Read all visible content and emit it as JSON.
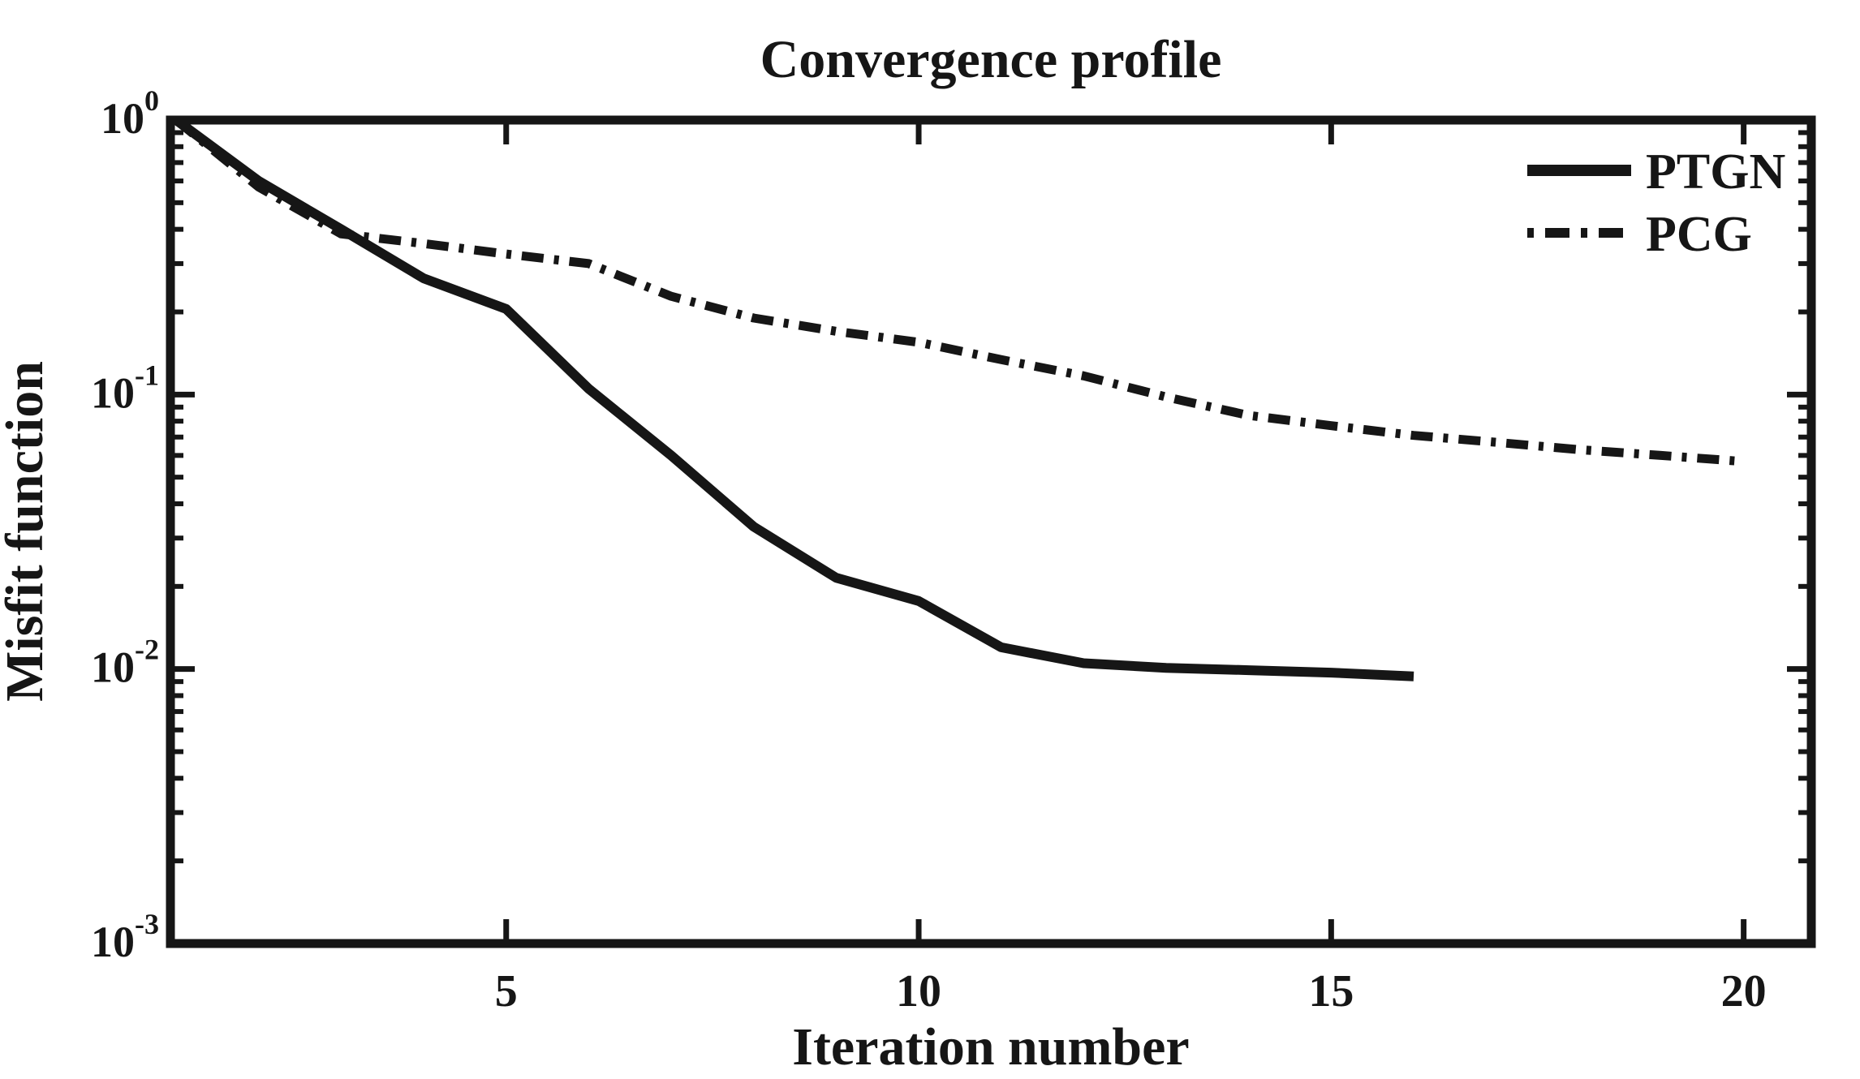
{
  "page": {
    "background": "#ffffff",
    "ink": "#161616"
  },
  "chart_data": {
    "type": "line",
    "title": "Convergence profile",
    "xlabel": "Iteration number",
    "ylabel": "Misfit function",
    "y_scale": "log",
    "y_range": [
      0.001,
      1.0
    ],
    "x_range_displayed": [
      0.93,
      20.82
    ],
    "x_ticks": [
      5,
      10,
      15,
      20
    ],
    "y_tick_labels": [
      {
        "base": "10",
        "exp": "0"
      },
      {
        "base": "10",
        "exp": "-1"
      },
      {
        "base": "10",
        "exp": "-2"
      },
      {
        "base": "10",
        "exp": "-3"
      }
    ],
    "grid": false,
    "legend_position": "top-right-inside",
    "series": [
      {
        "name": "PTGN",
        "line_style": "solid",
        "color": "#161616",
        "x": [
          1,
          2,
          3,
          4,
          5,
          6,
          7,
          8,
          9,
          10,
          11,
          12,
          13,
          14,
          15,
          16
        ],
        "y": [
          1.0,
          0.6,
          0.4,
          0.265,
          0.205,
          0.105,
          0.06,
          0.033,
          0.0215,
          0.0177,
          0.012,
          0.0105,
          0.0101,
          0.0099,
          0.0097,
          0.0094
        ]
      },
      {
        "name": "PCG",
        "line_style": "dash-dot",
        "color": "#161616",
        "x": [
          1,
          2,
          3,
          4,
          5,
          6,
          7,
          8,
          9,
          10,
          11,
          12,
          13,
          14,
          15,
          16,
          17,
          18,
          19,
          20
        ],
        "y": [
          1.0,
          0.57,
          0.385,
          0.355,
          0.325,
          0.3,
          0.228,
          0.19,
          0.17,
          0.155,
          0.134,
          0.117,
          0.098,
          0.084,
          0.077,
          0.071,
          0.067,
          0.063,
          0.06,
          0.057
        ]
      }
    ]
  }
}
